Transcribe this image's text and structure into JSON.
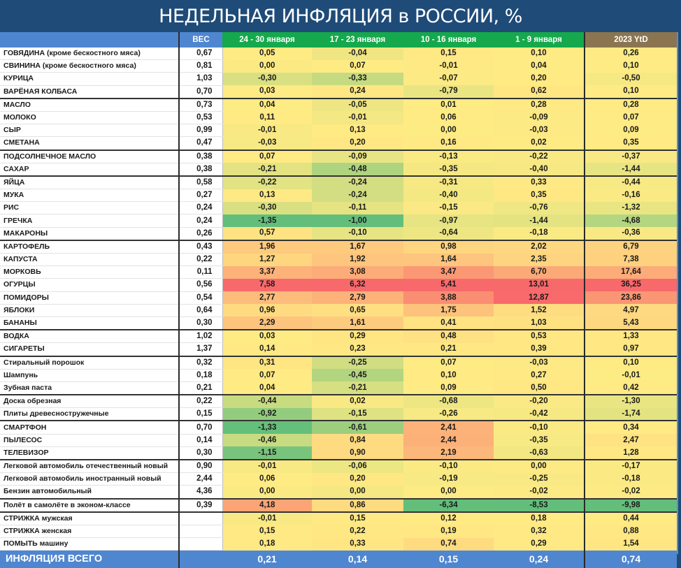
{
  "title": "НЕДЕЛЬНАЯ ИНФЛЯЦИЯ в РОССИИ, %",
  "headers": {
    "label": "",
    "weight": "ВЕС",
    "weeks": [
      "24 - 30 января",
      "17 - 23 января",
      "10 - 16 января",
      "1 - 9 января"
    ],
    "ytd": "2023 YtD"
  },
  "colors": {
    "title_bg": "#1f4b78",
    "header_blue": "#4f86d0",
    "header_green": "#16a84c",
    "header_ytd": "#8b7550",
    "low": "#63be7b",
    "mid": "#ffeb84",
    "high": "#f8696b"
  },
  "rows": [
    {
      "name": "ГОВЯДИНА (кроме бескостного мяса)",
      "weight": "0,67",
      "values": [
        "0,05",
        "-0,04",
        "0,15",
        "0,10"
      ],
      "ytd": "0,26",
      "sep": false
    },
    {
      "name": "СВИНИНА (кроме бескостного мяса)",
      "weight": "0,81",
      "values": [
        "0,00",
        "0,07",
        "-0,01",
        "0,04"
      ],
      "ytd": "0,10",
      "sep": false
    },
    {
      "name": "КУРИЦА",
      "weight": "1,03",
      "values": [
        "-0,30",
        "-0,33",
        "-0,07",
        "0,20"
      ],
      "ytd": "-0,50",
      "sep": false
    },
    {
      "name": "ВАРЁНАЯ КОЛБАСА",
      "weight": "0,70",
      "values": [
        "0,03",
        "0,24",
        "-0,79",
        "0,62"
      ],
      "ytd": "0,10",
      "sep": false
    },
    {
      "name": "МАСЛО",
      "weight": "0,73",
      "values": [
        "0,04",
        "-0,05",
        "0,01",
        "0,28"
      ],
      "ytd": "0,28",
      "sep": true
    },
    {
      "name": "МОЛОКО",
      "weight": "0,53",
      "values": [
        "0,11",
        "-0,01",
        "0,06",
        "-0,09"
      ],
      "ytd": "0,07",
      "sep": false
    },
    {
      "name": "СЫР",
      "weight": "0,99",
      "values": [
        "-0,01",
        "0,13",
        "0,00",
        "-0,03"
      ],
      "ytd": "0,09",
      "sep": false
    },
    {
      "name": "СМЕТАНА",
      "weight": "0,47",
      "values": [
        "-0,03",
        "0,20",
        "0,16",
        "0,02"
      ],
      "ytd": "0,35",
      "sep": false
    },
    {
      "name": "ПОДСОЛНЕЧНОЕ МАСЛО",
      "weight": "0,38",
      "values": [
        "0,07",
        "-0,09",
        "-0,13",
        "-0,22"
      ],
      "ytd": "-0,37",
      "sep": true
    },
    {
      "name": "САХАР",
      "weight": "0,38",
      "values": [
        "-0,21",
        "-0,48",
        "-0,35",
        "-0,40"
      ],
      "ytd": "-1,44",
      "sep": false
    },
    {
      "name": "ЯЙЦА",
      "weight": "0,58",
      "values": [
        "-0,22",
        "-0,24",
        "-0,31",
        "0,33"
      ],
      "ytd": "-0,44",
      "sep": true
    },
    {
      "name": "МУКА",
      "weight": "0,27",
      "values": [
        "0,13",
        "-0,24",
        "-0,40",
        "0,35"
      ],
      "ytd": "-0,16",
      "sep": false
    },
    {
      "name": "РИС",
      "weight": "0,24",
      "values": [
        "-0,30",
        "-0,11",
        "-0,15",
        "-0,76"
      ],
      "ytd": "-1,32",
      "sep": false
    },
    {
      "name": "ГРЕЧКА",
      "weight": "0,24",
      "values": [
        "-1,35",
        "-1,00",
        "-0,97",
        "-1,44"
      ],
      "ytd": "-4,68",
      "sep": false
    },
    {
      "name": "МАКАРОНЫ",
      "weight": "0,26",
      "values": [
        "0,57",
        "-0,10",
        "-0,64",
        "-0,18"
      ],
      "ytd": "-0,36",
      "sep": false
    },
    {
      "name": "КАРТОФЕЛЬ",
      "weight": "0,43",
      "values": [
        "1,96",
        "1,67",
        "0,98",
        "2,02"
      ],
      "ytd": "6,79",
      "sep": true
    },
    {
      "name": "КАПУСТА",
      "weight": "0,22",
      "values": [
        "1,27",
        "1,92",
        "1,64",
        "2,35"
      ],
      "ytd": "7,38",
      "sep": false
    },
    {
      "name": "МОРКОВЬ",
      "weight": "0,11",
      "values": [
        "3,37",
        "3,08",
        "3,47",
        "6,70"
      ],
      "ytd": "17,64",
      "sep": false
    },
    {
      "name": "ОГУРЦЫ",
      "weight": "0,56",
      "values": [
        "7,58",
        "6,32",
        "5,41",
        "13,01"
      ],
      "ytd": "36,25",
      "sep": false
    },
    {
      "name": "ПОМИДОРЫ",
      "weight": "0,54",
      "values": [
        "2,77",
        "2,79",
        "3,88",
        "12,87"
      ],
      "ytd": "23,86",
      "sep": false
    },
    {
      "name": "ЯБЛОКИ",
      "weight": "0,64",
      "values": [
        "0,96",
        "0,65",
        "1,75",
        "1,52"
      ],
      "ytd": "4,97",
      "sep": false
    },
    {
      "name": "БАНАНЫ",
      "weight": "0,30",
      "values": [
        "2,29",
        "1,61",
        "0,41",
        "1,03"
      ],
      "ytd": "5,43",
      "sep": false
    },
    {
      "name": "ВОДКА",
      "weight": "1,02",
      "values": [
        "0,03",
        "0,29",
        "0,48",
        "0,53"
      ],
      "ytd": "1,33",
      "sep": true
    },
    {
      "name": "СИГАРЕТЫ",
      "weight": "1,37",
      "values": [
        "0,14",
        "0,23",
        "0,21",
        "0,39"
      ],
      "ytd": "0,97",
      "sep": false
    },
    {
      "name": "Стиральный порошок",
      "weight": "0,32",
      "values": [
        "0,31",
        "-0,25",
        "0,07",
        "-0,03"
      ],
      "ytd": "0,10",
      "sep": true
    },
    {
      "name": "Шампунь",
      "weight": "0,18",
      "values": [
        "0,07",
        "-0,45",
        "0,10",
        "0,27"
      ],
      "ytd": "-0,01",
      "sep": false
    },
    {
      "name": "Зубная паста",
      "weight": "0,21",
      "values": [
        "0,04",
        "-0,21",
        "0,09",
        "0,50"
      ],
      "ytd": "0,42",
      "sep": false
    },
    {
      "name": "Доска обрезная",
      "weight": "0,22",
      "values": [
        "-0,44",
        "0,02",
        "-0,68",
        "-0,20"
      ],
      "ytd": "-1,30",
      "sep": true
    },
    {
      "name": "Плиты древесностружечные",
      "weight": "0,15",
      "values": [
        "-0,92",
        "-0,15",
        "-0,26",
        "-0,42"
      ],
      "ytd": "-1,74",
      "sep": false
    },
    {
      "name": "СМАРТФОН",
      "weight": "0,70",
      "values": [
        "-1,33",
        "-0,61",
        "2,41",
        "-0,10"
      ],
      "ytd": "0,34",
      "sep": true
    },
    {
      "name": "ПЫЛЕСОС",
      "weight": "0,14",
      "values": [
        "-0,46",
        "0,84",
        "2,44",
        "-0,35"
      ],
      "ytd": "2,47",
      "sep": false
    },
    {
      "name": "ТЕЛЕВИЗОР",
      "weight": "0,30",
      "values": [
        "-1,15",
        "0,90",
        "2,19",
        "-0,63"
      ],
      "ytd": "1,28",
      "sep": false
    },
    {
      "name": "Легковой автомобиль отечественный новый",
      "weight": "0,90",
      "values": [
        "-0,01",
        "-0,06",
        "-0,10",
        "0,00"
      ],
      "ytd": "-0,17",
      "sep": true
    },
    {
      "name": "Легковой автомобиль иностранный новый",
      "weight": "2,44",
      "values": [
        "0,06",
        "0,20",
        "-0,19",
        "-0,25"
      ],
      "ytd": "-0,18",
      "sep": false
    },
    {
      "name": "Бензин автомобильный",
      "weight": "4,36",
      "values": [
        "0,00",
        "0,00",
        "0,00",
        "-0,02"
      ],
      "ytd": "-0,02",
      "sep": false
    },
    {
      "name": "Полёт в самолёте в эконом-классе",
      "weight": "0,39",
      "values": [
        "4,18",
        "0,86",
        "-6,34",
        "-8,53"
      ],
      "ytd": "-9,98",
      "sep": true
    },
    {
      "name": "СТРИЖКА мужская",
      "weight": "",
      "values": [
        "-0,01",
        "0,15",
        "0,12",
        "0,18"
      ],
      "ytd": "0,44",
      "sep": true
    },
    {
      "name": "СТРИЖКА женская",
      "weight": "",
      "values": [
        "0,15",
        "0,22",
        "0,19",
        "0,32"
      ],
      "ytd": "0,88",
      "sep": false
    },
    {
      "name": "ПОМЫТЬ машину",
      "weight": "",
      "values": [
        "0,18",
        "0,33",
        "0,74",
        "0,29"
      ],
      "ytd": "1,54",
      "sep": false
    }
  ],
  "total": {
    "name": "ИНФЛЯЦИЯ ВСЕГО",
    "weight": "",
    "values": [
      "0,21",
      "0,14",
      "0,15",
      "0,24"
    ],
    "ytd": "0,74"
  }
}
